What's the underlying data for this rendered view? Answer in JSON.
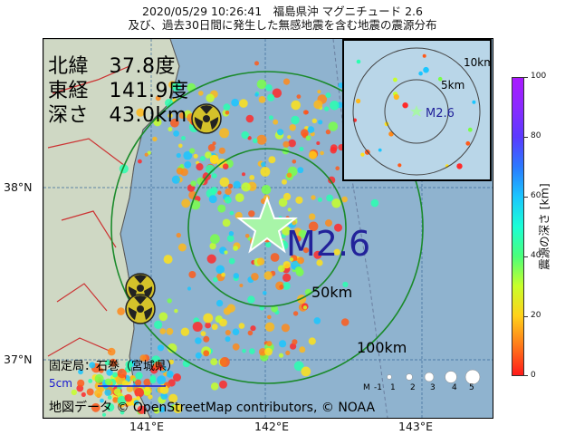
{
  "title": {
    "line1": "2020/05/29 10:26:41　福島県沖 マグニチュード 2.6",
    "line2": "及び、過去30日間に発生した無感地震を含む地震の震源分布"
  },
  "location": {
    "lat_text": "北緯　37.8度",
    "lon_text": "東経　141.9度",
    "depth_text": "深さ　43.0km"
  },
  "magnitude_label": "M2.6",
  "rings": {
    "r50": "50km",
    "r100": "100km"
  },
  "inset": {
    "r10": "10km",
    "r5": "5km",
    "mag": "M2.6"
  },
  "station_text": "固定局：石巻（宮城県）",
  "scale_text": "5cm",
  "attribution": "地図データ © OpenStreetMap contributors, © NOAA",
  "legend": {
    "m_label": "M",
    "sizes": [
      "-1",
      "1",
      "2",
      "3",
      "4",
      "5"
    ]
  },
  "axes": {
    "x_ticks": [
      "141°E",
      "142°E",
      "143°E"
    ],
    "y_ticks": [
      "38°N",
      "37°N"
    ]
  },
  "colorbar": {
    "label": "震源の深さ [km]",
    "ticks": [
      "0",
      "20",
      "40",
      "60",
      "80",
      "100"
    ]
  },
  "colors": {
    "sea": "#8fb3cf",
    "land": "#cfd8c4",
    "ring": "#1a8a2a",
    "epicenter_star": "#a8f5a8",
    "mag_text": "#22229a"
  },
  "icons": [
    "nuclear-plant-icon",
    "epicenter-star-icon"
  ]
}
